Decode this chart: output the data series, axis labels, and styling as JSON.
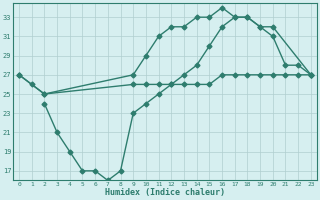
{
  "line1_x": [
    0,
    1,
    2,
    9,
    10,
    11,
    12,
    13,
    14,
    15,
    16,
    17,
    18,
    19,
    20,
    21,
    22,
    23
  ],
  "line1_y": [
    27,
    26,
    25,
    26,
    26,
    26,
    26,
    26,
    26,
    26,
    27,
    27,
    27,
    27,
    27,
    27,
    27,
    27
  ],
  "line2_x": [
    0,
    2,
    9,
    10,
    11,
    12,
    13,
    14,
    15,
    16,
    17,
    18,
    19,
    20,
    23
  ],
  "line2_y": [
    27,
    25,
    27,
    29,
    31,
    32,
    32,
    33,
    33,
    34,
    33,
    33,
    32,
    32,
    27
  ],
  "line3_x": [
    2,
    3,
    4,
    5,
    6,
    7,
    8,
    9,
    10,
    11,
    12,
    13,
    14,
    15,
    16,
    17,
    18,
    19,
    20,
    21,
    22,
    23
  ],
  "line3_y": [
    24,
    21,
    19,
    17,
    17,
    16,
    17,
    23,
    24,
    25,
    26,
    27,
    28,
    30,
    32,
    33,
    33,
    32,
    31,
    28,
    28,
    27
  ],
  "color": "#2e7d6e",
  "bg_color": "#d6eff0",
  "grid_color": "#b0cfcf",
  "xlabel": "Humidex (Indice chaleur)",
  "xlim": [
    -0.5,
    23.5
  ],
  "ylim": [
    16,
    34.5
  ],
  "xticks": [
    0,
    1,
    2,
    3,
    4,
    5,
    6,
    7,
    8,
    9,
    10,
    11,
    12,
    13,
    14,
    15,
    16,
    17,
    18,
    19,
    20,
    21,
    22,
    23
  ],
  "yticks": [
    17,
    19,
    21,
    23,
    25,
    27,
    29,
    31,
    33
  ],
  "marker": "D",
  "markersize": 2.5,
  "linewidth": 1.0
}
